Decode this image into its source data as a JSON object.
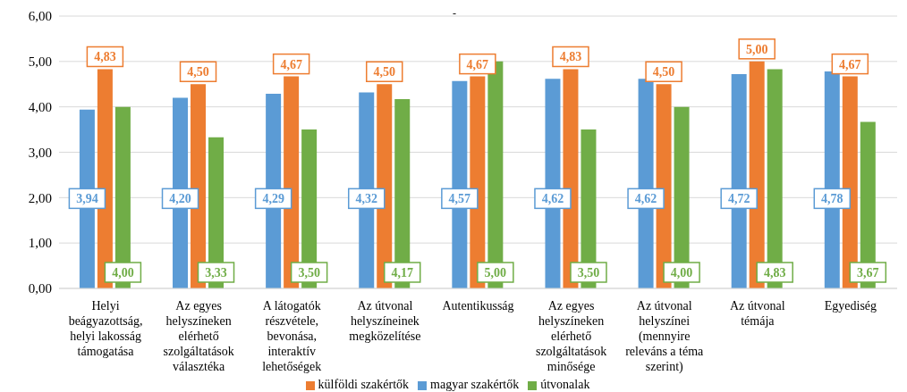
{
  "chart_data": {
    "type": "bar",
    "title": "-",
    "categories": [
      "Helyi beágyazottság, helyi lakosság támogatása",
      "Az egyes helyszíneken elérhető szolgáltatások választéka",
      "A látogatók részvétele, bevonása, interaktív lehetőségek",
      "Az útvonal helyszíneinek megközelítése",
      "Autentikusság",
      "Az egyes helyszíneken elérhető szolgáltatások minősége",
      "Az útvonal helyszínei (mennyire releváns a téma szerint)",
      "Az útvonal témája",
      "Egyediség"
    ],
    "series": [
      {
        "name": "magyar szakértők",
        "color": "#5b9bd5",
        "values": [
          3.94,
          4.2,
          4.29,
          4.32,
          4.57,
          4.62,
          4.62,
          4.72,
          4.78
        ],
        "value_labels": [
          "3,94",
          "4,20",
          "4,29",
          "4,32",
          "4,57",
          "4,62",
          "4,62",
          "4,72",
          "4,78"
        ]
      },
      {
        "name": "külföldi szakértők",
        "color": "#ed7d31",
        "values": [
          4.83,
          4.5,
          4.67,
          4.5,
          4.67,
          4.83,
          4.5,
          5.0,
          4.67
        ],
        "value_labels": [
          "4,83",
          "4,50",
          "4,67",
          "4,50",
          "4,67",
          "4,83",
          "4,50",
          "5,00",
          "4,67"
        ]
      },
      {
        "name": "útvonalak",
        "color": "#70ad47",
        "values": [
          4.0,
          3.33,
          3.5,
          4.17,
          5.0,
          3.5,
          4.0,
          4.83,
          3.67
        ],
        "value_labels": [
          "4,00",
          "3,33",
          "3,50",
          "4,17",
          "5,00",
          "3,50",
          "4,00",
          "4,83",
          "3,67"
        ]
      }
    ],
    "ylim": [
      0,
      6
    ],
    "yticks": [
      {
        "value": 0,
        "label": "0,00"
      },
      {
        "value": 1,
        "label": "1,00"
      },
      {
        "value": 2,
        "label": "2,00"
      },
      {
        "value": 3,
        "label": "3,00"
      },
      {
        "value": 4,
        "label": "4,00"
      },
      {
        "value": 5,
        "label": "5,00"
      },
      {
        "value": 6,
        "label": "6,00"
      }
    ],
    "grid": "y",
    "legend": "bottom"
  }
}
